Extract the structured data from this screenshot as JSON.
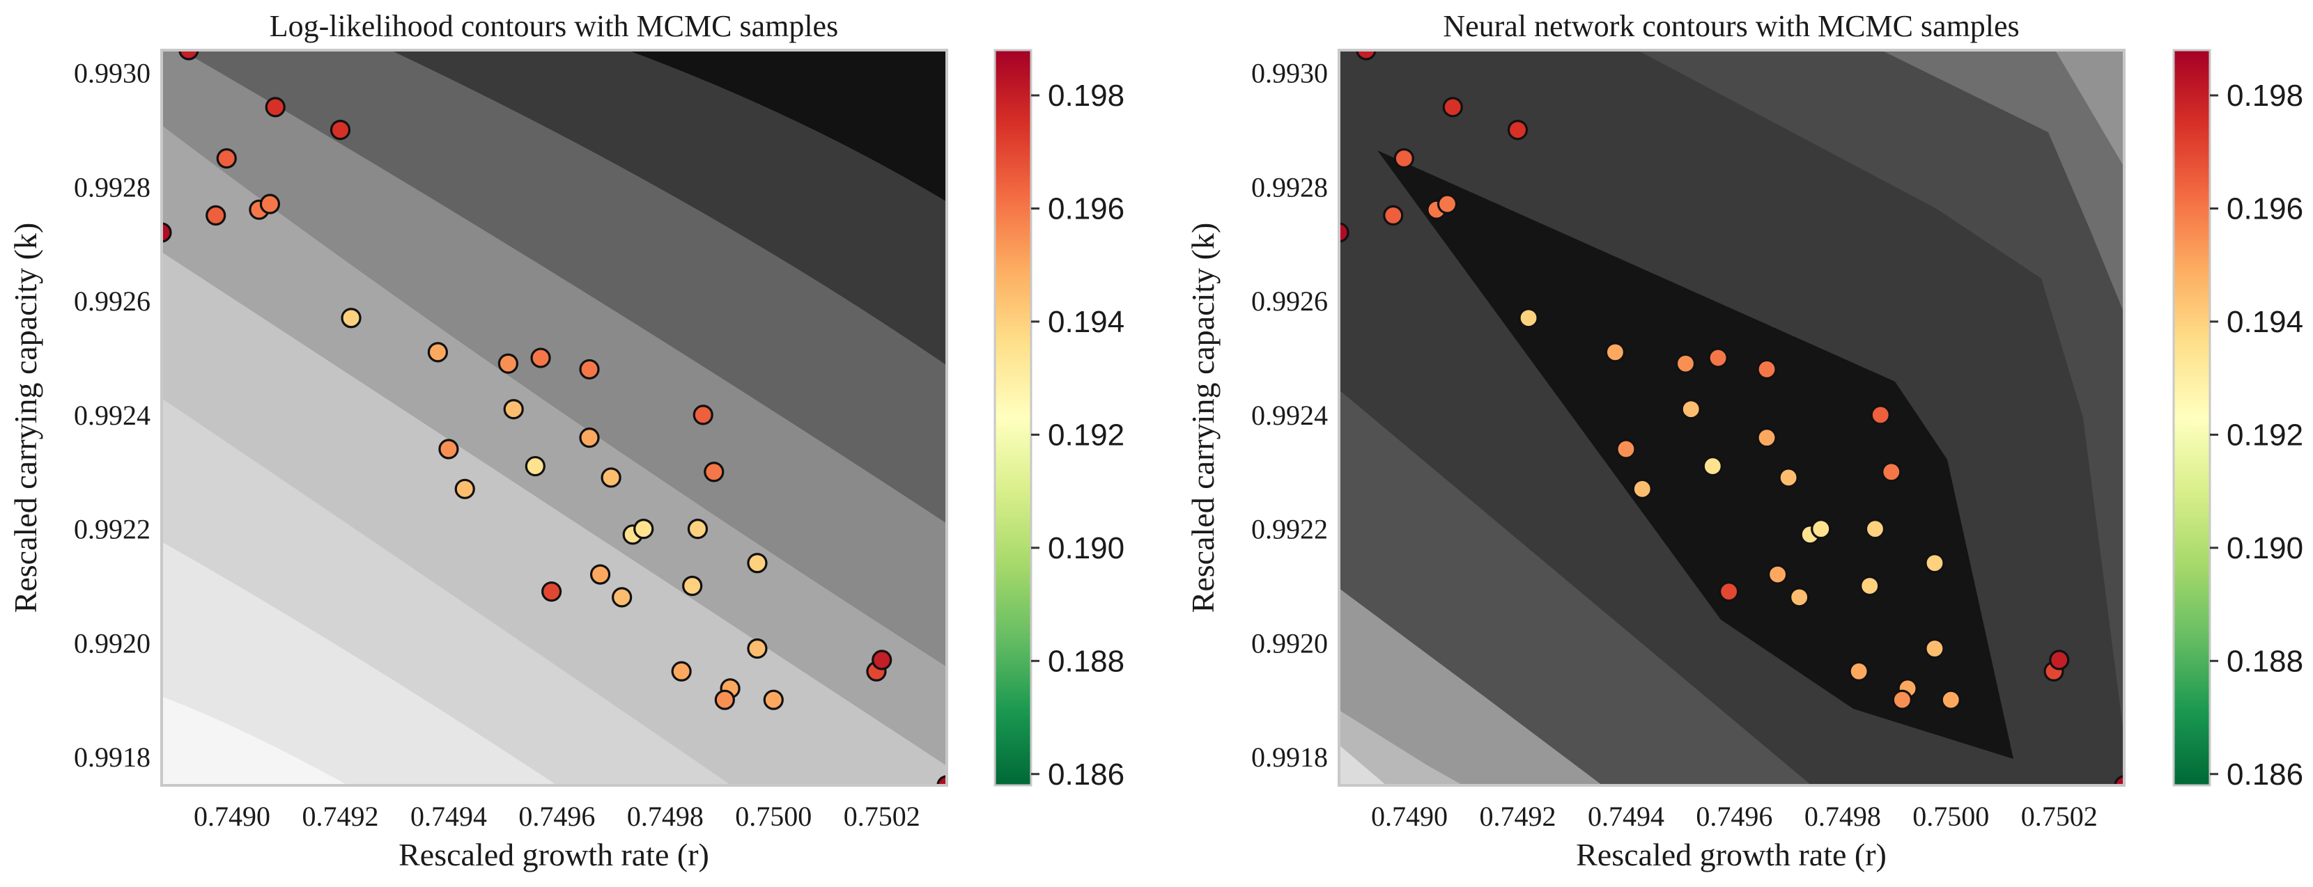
{
  "chart_data": [
    {
      "type": "scatter",
      "title": "Log-likelihood contours with MCMC samples",
      "xlabel": "Rescaled growth rate (r)",
      "ylabel": "Rescaled carrying capacity (k)",
      "xlim": [
        0.74887,
        0.75032
      ],
      "ylim": [
        0.99175,
        0.99304
      ],
      "xticks": [
        "0.7490",
        "0.7492",
        "0.7494",
        "0.7496",
        "0.7498",
        "0.7500",
        "0.7502"
      ],
      "yticks": [
        "0.9918",
        "0.9920",
        "0.9922",
        "0.9924",
        "0.9926",
        "0.9928",
        "0.9930"
      ],
      "background": "filled contours, grayscale",
      "grid": false
    },
    {
      "type": "scatter",
      "title": "Neural network contours with MCMC samples",
      "xlabel": "Rescaled growth rate (r)",
      "ylabel": "Rescaled carrying capacity (k)",
      "xlim": [
        0.74887,
        0.75032
      ],
      "ylim": [
        0.99175,
        0.99304
      ],
      "xticks": [
        "0.7490",
        "0.7492",
        "0.7494",
        "0.7496",
        "0.7498",
        "0.7500",
        "0.7502"
      ],
      "yticks": [
        "0.9918",
        "0.9920",
        "0.9922",
        "0.9924",
        "0.9926",
        "0.9928",
        "0.9930"
      ],
      "background": "filled contours, grayscale",
      "grid": false
    }
  ],
  "samples": [
    {
      "r": 0.74887,
      "k": 0.99272,
      "c": 0.1985
    },
    {
      "r": 0.74892,
      "k": 0.99304,
      "c": 0.198
    },
    {
      "r": 0.74908,
      "k": 0.99294,
      "c": 0.1975
    },
    {
      "r": 0.7492,
      "k": 0.9929,
      "c": 0.1975
    },
    {
      "r": 0.74899,
      "k": 0.99285,
      "c": 0.1965
    },
    {
      "r": 0.74897,
      "k": 0.99275,
      "c": 0.1965
    },
    {
      "r": 0.74905,
      "k": 0.99276,
      "c": 0.196
    },
    {
      "r": 0.74907,
      "k": 0.99277,
      "c": 0.196
    },
    {
      "r": 0.74922,
      "k": 0.99257,
      "c": 0.194
    },
    {
      "r": 0.74938,
      "k": 0.99251,
      "c": 0.195
    },
    {
      "r": 0.74951,
      "k": 0.99249,
      "c": 0.1955
    },
    {
      "r": 0.74957,
      "k": 0.9925,
      "c": 0.196
    },
    {
      "r": 0.74966,
      "k": 0.99248,
      "c": 0.196
    },
    {
      "r": 0.74952,
      "k": 0.99241,
      "c": 0.1945
    },
    {
      "r": 0.7494,
      "k": 0.99234,
      "c": 0.1955
    },
    {
      "r": 0.74966,
      "k": 0.99236,
      "c": 0.195
    },
    {
      "r": 0.74956,
      "k": 0.99231,
      "c": 0.1935
    },
    {
      "r": 0.74943,
      "k": 0.99227,
      "c": 0.1945
    },
    {
      "r": 0.7497,
      "k": 0.99229,
      "c": 0.1945
    },
    {
      "r": 0.74987,
      "k": 0.9924,
      "c": 0.1965
    },
    {
      "r": 0.74989,
      "k": 0.9923,
      "c": 0.196
    },
    {
      "r": 0.74974,
      "k": 0.99219,
      "c": 0.1935
    },
    {
      "r": 0.74976,
      "k": 0.9922,
      "c": 0.1935
    },
    {
      "r": 0.74986,
      "k": 0.9922,
      "c": 0.194
    },
    {
      "r": 0.74968,
      "k": 0.99212,
      "c": 0.195
    },
    {
      "r": 0.74959,
      "k": 0.99209,
      "c": 0.197
    },
    {
      "r": 0.74972,
      "k": 0.99208,
      "c": 0.1945
    },
    {
      "r": 0.74985,
      "k": 0.9921,
      "c": 0.194
    },
    {
      "r": 0.74997,
      "k": 0.99214,
      "c": 0.194
    },
    {
      "r": 0.74983,
      "k": 0.99195,
      "c": 0.195
    },
    {
      "r": 0.74997,
      "k": 0.99199,
      "c": 0.1945
    },
    {
      "r": 0.74992,
      "k": 0.99192,
      "c": 0.195
    },
    {
      "r": 0.74991,
      "k": 0.9919,
      "c": 0.1955
    },
    {
      "r": 0.75,
      "k": 0.9919,
      "c": 0.195
    },
    {
      "r": 0.75019,
      "k": 0.99195,
      "c": 0.197
    },
    {
      "r": 0.7502,
      "k": 0.99197,
      "c": 0.198
    },
    {
      "r": 0.75032,
      "k": 0.99175,
      "c": 0.1985
    }
  ],
  "colorbar": {
    "colormap": "RdYlGn_r",
    "range": [
      0.1858,
      0.1988
    ],
    "ticks": [
      "0.186",
      "0.188",
      "0.190",
      "0.192",
      "0.194",
      "0.196",
      "0.198"
    ],
    "stops": [
      "#006837",
      "#1a9850",
      "#66bd63",
      "#a6d96a",
      "#d9ef8b",
      "#ffffbf",
      "#fee08b",
      "#fdae61",
      "#f46d43",
      "#d73027",
      "#a50026"
    ]
  }
}
